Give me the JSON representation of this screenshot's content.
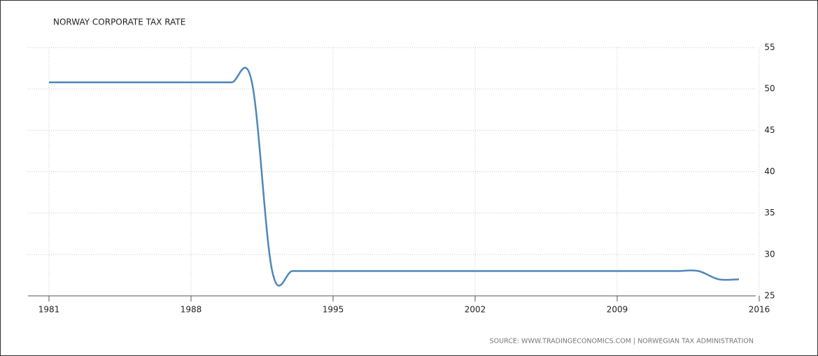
{
  "chart_data": {
    "type": "line",
    "title": "NORWAY CORPORATE TAX RATE",
    "source": "SOURCE: WWW.TRADINGECONOMICS.COM  |  NORWEGIAN TAX ADMINISTRATION",
    "x": [
      1981,
      1982,
      1983,
      1984,
      1985,
      1986,
      1987,
      1988,
      1989,
      1990,
      1991,
      1992,
      1993,
      1994,
      1995,
      1996,
      1997,
      1998,
      1999,
      2000,
      2001,
      2002,
      2003,
      2004,
      2005,
      2006,
      2007,
      2008,
      2009,
      2010,
      2011,
      2012,
      2013,
      2014,
      2015
    ],
    "series": [
      {
        "name": "Corporate Tax Rate",
        "color": "#4f87b9",
        "values": [
          50.8,
          50.8,
          50.8,
          50.8,
          50.8,
          50.8,
          50.8,
          50.8,
          50.8,
          50.8,
          50.8,
          28,
          28,
          28,
          28,
          28,
          28,
          28,
          28,
          28,
          28,
          28,
          28,
          28,
          28,
          28,
          28,
          28,
          28,
          28,
          28,
          28,
          28,
          27,
          27
        ]
      }
    ],
    "xlim": [
      1981,
      2016
    ],
    "xticks": [
      1981,
      1988,
      1995,
      2002,
      2009,
      2016
    ],
    "ylim": [
      25,
      55
    ],
    "yticks": [
      25,
      30,
      35,
      40,
      45,
      50,
      55
    ],
    "y_axis_side": "right",
    "grid": true
  }
}
